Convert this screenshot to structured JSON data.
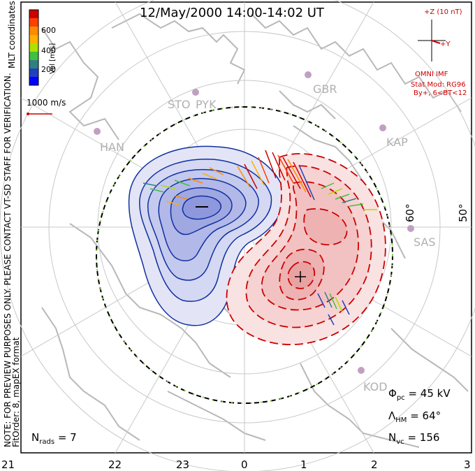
{
  "title": "12/May/2000 14:00-14:02 UT",
  "vertical_note": "NOTE: FOR PREVIEW PURPOSES ONLY. PLEASE CONTACT VT-SD STAFF FOR VERIFICATION.",
  "vertical_note2": "FitOrder: 8, mapEX format",
  "coord_label": "MLT coordinates",
  "colorbar": {
    "label": "Vel [m/s]",
    "ticks": [
      "600",
      "400",
      "200"
    ],
    "colors": [
      "#cc0000",
      "#ff4000",
      "#ff8c00",
      "#ffb000",
      "#b0e000",
      "#40c040",
      "#308080",
      "#2040c0",
      "#0000ff"
    ]
  },
  "scale_label": "1000 m/s",
  "imf": {
    "z_label": "+Z (10 nT)",
    "y_label": "+Y",
    "source": "OMNI IMF",
    "model": "Stat Mod: RG96",
    "condition": "By+, 6<BT<12"
  },
  "stations": [
    "STO",
    "PYK",
    "GBR",
    "HAN",
    "KAP",
    "SAS",
    "KOD"
  ],
  "latitude_labels": [
    "60°",
    "50°"
  ],
  "stats": {
    "phi_label": "Φ",
    "phi_sub": "pc",
    "phi_value": "= 45 kV",
    "lambda_label": "Λ",
    "lambda_sub": "HM",
    "lambda_value": "= 64°",
    "nvc_label": "N",
    "nvc_sub": "vc",
    "nvc_value": "= 156",
    "nrads_label": "N",
    "nrads_sub": "rads",
    "nrads_value": "= 7"
  },
  "mlt_ticks": [
    "21",
    "22",
    "23",
    "0",
    "1",
    "2",
    "3"
  ],
  "colors": {
    "negative_contour": "#1030a0",
    "positive_contour": "#cc0000",
    "neg_fill": "#d8dcf4",
    "pos_fill": "#f8d8d8",
    "grid": "#c8c8c8",
    "land": "#b8b8b8"
  }
}
